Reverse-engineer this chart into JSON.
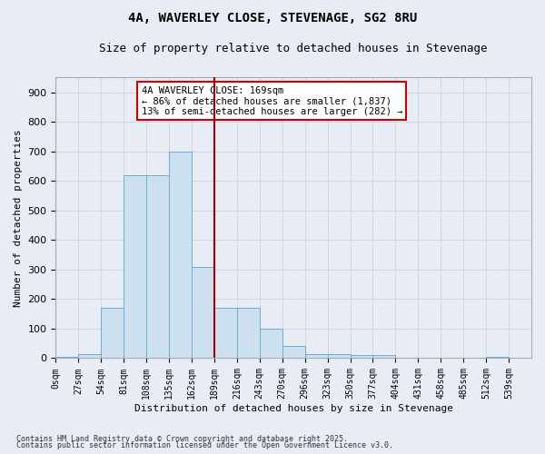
{
  "title": "4A, WAVERLEY CLOSE, STEVENAGE, SG2 8RU",
  "subtitle": "Size of property relative to detached houses in Stevenage",
  "xlabel": "Distribution of detached houses by size in Stevenage",
  "ylabel": "Number of detached properties",
  "footnote1": "Contains HM Land Registry data © Crown copyright and database right 2025.",
  "footnote2": "Contains public sector information licensed under the Open Government Licence v3.0.",
  "bins": [
    "0sqm",
    "27sqm",
    "54sqm",
    "81sqm",
    "108sqm",
    "135sqm",
    "162sqm",
    "189sqm",
    "216sqm",
    "243sqm",
    "270sqm",
    "296sqm",
    "323sqm",
    "350sqm",
    "377sqm",
    "404sqm",
    "431sqm",
    "458sqm",
    "485sqm",
    "512sqm",
    "539sqm"
  ],
  "values": [
    5,
    15,
    170,
    620,
    620,
    700,
    310,
    170,
    170,
    100,
    40,
    15,
    15,
    10,
    10,
    0,
    0,
    0,
    0,
    5,
    0
  ],
  "bar_color": "#cce0f0",
  "bar_edge_color": "#6baed6",
  "grid_color": "#d0d8e8",
  "background_color": "#e8edf5",
  "vline_color": "#aa0000",
  "annotation_text": "4A WAVERLEY CLOSE: 169sqm\n← 86% of detached houses are smaller (1,837)\n13% of semi-detached houses are larger (282) →",
  "annotation_box_color": "#ffffff",
  "annotation_box_edge": "#cc0000",
  "ylim": [
    0,
    950
  ],
  "yticks": [
    0,
    100,
    200,
    300,
    400,
    500,
    600,
    700,
    800,
    900
  ]
}
